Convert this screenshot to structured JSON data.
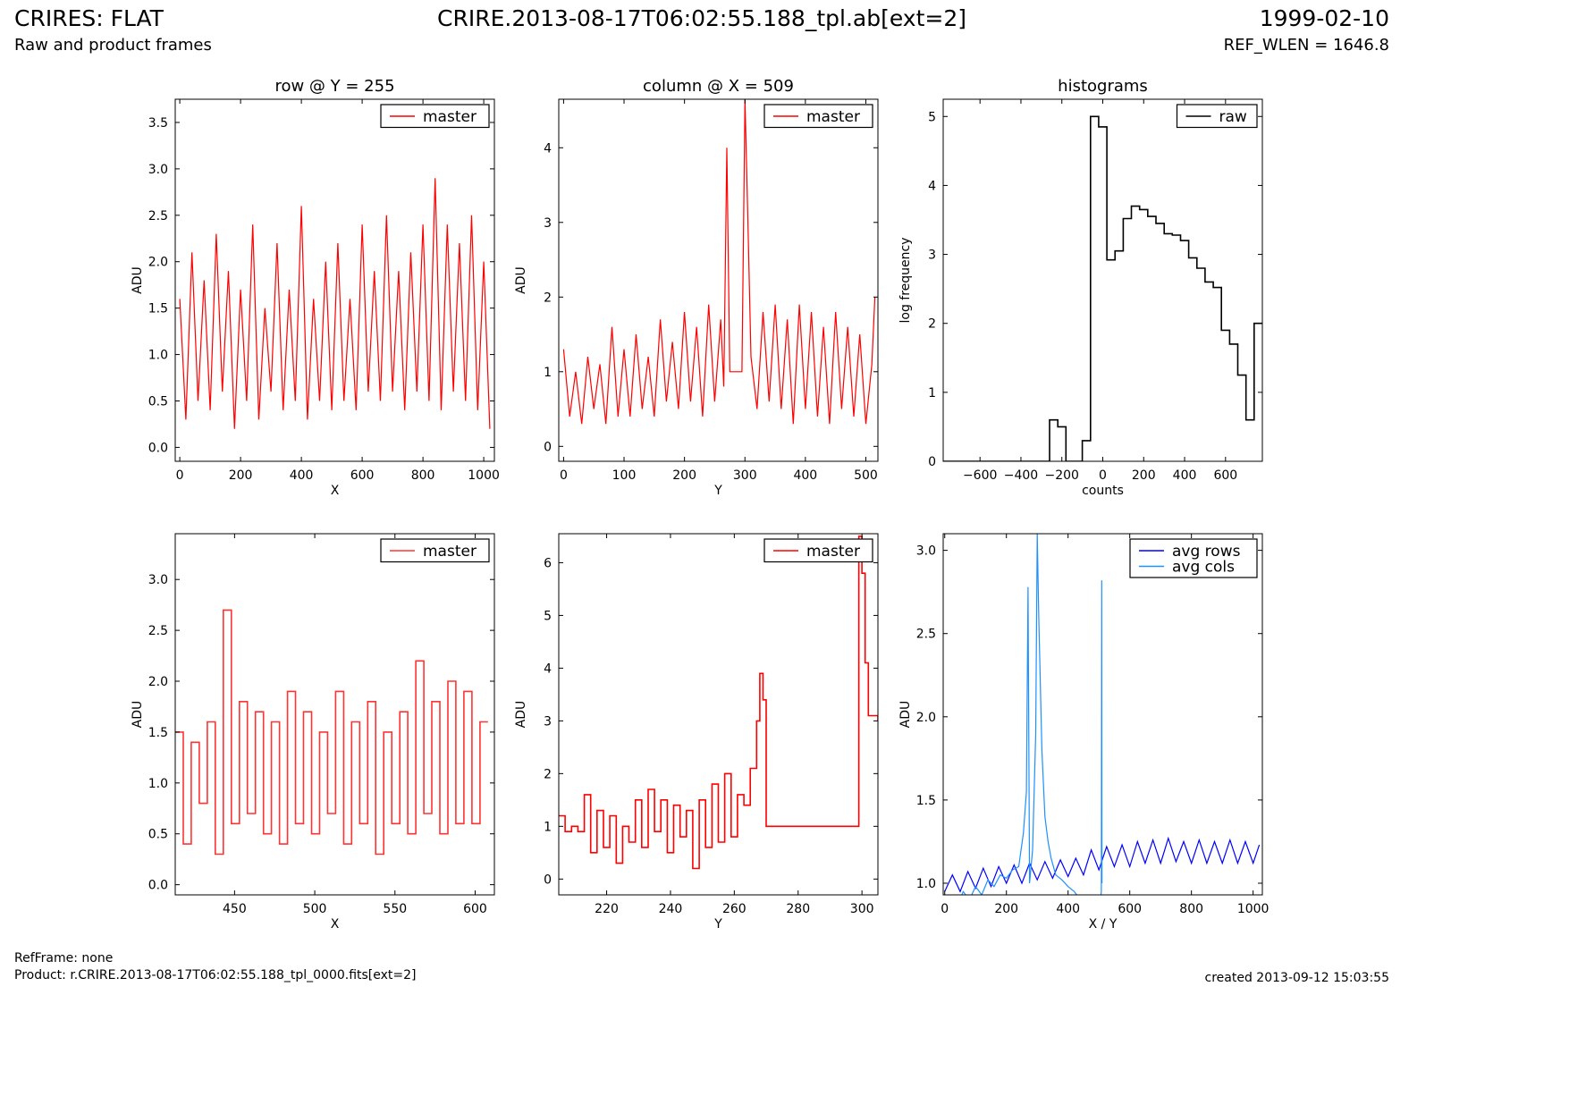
{
  "header": {
    "title_left": "CRIRES: FLAT",
    "subtitle_left": "Raw and product frames",
    "title_center": "CRIRE.2013-08-17T06:02:55.188_tpl.ab[ext=2]",
    "title_right": "1999-02-10",
    "subtitle_right": "REF_WLEN = 1646.8"
  },
  "footer": {
    "refframe": "RefFrame: none",
    "product": "Product: r.CRIRE.2013-08-17T06:02:55.188_tpl_0000.fits[ext=2]",
    "created": "created 2013-09-12 15:03:55"
  },
  "chart_data": [
    {
      "type": "line",
      "title": "row @ Y = 255",
      "xlabel": "X",
      "ylabel": "ADU",
      "xlim": [
        -15,
        1035
      ],
      "ylim": [
        -0.15,
        3.75
      ],
      "xticks": [
        0,
        200,
        400,
        600,
        800,
        1000
      ],
      "yticks": [
        0.0,
        0.5,
        1.0,
        1.5,
        2.0,
        2.5,
        3.0,
        3.5
      ],
      "ytick_labels": [
        "0.0",
        "0.5",
        "1.0",
        "1.5",
        "2.0",
        "2.5",
        "3.0",
        "3.5"
      ],
      "legend": "top-right",
      "series": [
        {
          "name": "master",
          "color": "#ff0000",
          "step": false,
          "x": [
            0,
            20,
            40,
            60,
            80,
            100,
            120,
            140,
            160,
            180,
            200,
            220,
            240,
            260,
            280,
            300,
            320,
            340,
            360,
            380,
            400,
            420,
            440,
            460,
            480,
            500,
            520,
            540,
            560,
            580,
            600,
            620,
            640,
            660,
            680,
            700,
            720,
            740,
            760,
            780,
            800,
            820,
            840,
            860,
            880,
            900,
            920,
            940,
            960,
            980,
            1000,
            1020
          ],
          "y": [
            1.6,
            0.3,
            2.1,
            0.5,
            1.8,
            0.4,
            2.3,
            0.6,
            1.9,
            0.2,
            1.7,
            0.5,
            2.4,
            0.3,
            1.5,
            0.6,
            2.2,
            0.4,
            1.7,
            0.5,
            2.6,
            0.3,
            1.6,
            0.5,
            2.0,
            0.4,
            2.2,
            0.5,
            1.6,
            0.4,
            2.4,
            0.6,
            1.9,
            0.5,
            2.5,
            0.6,
            1.9,
            0.4,
            2.1,
            0.6,
            2.4,
            0.5,
            2.9,
            0.4,
            2.4,
            0.6,
            2.2,
            0.5,
            2.5,
            0.4,
            2.0,
            0.2
          ]
        }
      ]
    },
    {
      "type": "line",
      "title": "column @ X = 509",
      "xlabel": "Y",
      "ylabel": "ADU",
      "xlim": [
        -8,
        520
      ],
      "ylim": [
        -0.2,
        4.65
      ],
      "xticks": [
        0,
        100,
        200,
        300,
        400,
        500
      ],
      "yticks": [
        0,
        1,
        2,
        3,
        4
      ],
      "ytick_labels": [
        "0",
        "1",
        "2",
        "3",
        "4"
      ],
      "legend": "top-right",
      "series": [
        {
          "name": "master",
          "color": "#ff0000",
          "step": false,
          "x": [
            0,
            10,
            20,
            30,
            40,
            50,
            60,
            70,
            80,
            90,
            100,
            110,
            120,
            130,
            140,
            150,
            160,
            170,
            180,
            190,
            200,
            210,
            220,
            230,
            240,
            250,
            260,
            265,
            270,
            275,
            280,
            290,
            295,
            300,
            305,
            310,
            320,
            330,
            340,
            350,
            360,
            370,
            380,
            390,
            400,
            410,
            420,
            430,
            440,
            450,
            460,
            470,
            480,
            490,
            500,
            510,
            515
          ],
          "y": [
            1.3,
            0.4,
            1.0,
            0.3,
            1.2,
            0.5,
            1.1,
            0.3,
            1.6,
            0.4,
            1.3,
            0.4,
            1.5,
            0.5,
            1.2,
            0.4,
            1.7,
            0.6,
            1.4,
            0.5,
            1.8,
            0.6,
            1.6,
            0.4,
            1.9,
            0.6,
            1.7,
            0.8,
            4.0,
            1.0,
            1.0,
            1.0,
            1.0,
            4.65,
            3.0,
            1.2,
            0.5,
            1.8,
            0.6,
            1.9,
            0.5,
            1.7,
            0.3,
            1.9,
            0.5,
            1.8,
            0.4,
            1.6,
            0.3,
            1.8,
            0.5,
            1.6,
            0.4,
            1.5,
            0.3,
            1.1,
            2.0
          ]
        }
      ]
    },
    {
      "type": "line",
      "title": "histograms",
      "xlabel": "counts",
      "ylabel": "log frequency",
      "xlim": [
        -780,
        780
      ],
      "ylim": [
        0,
        5.25
      ],
      "xticks": [
        -600,
        -400,
        -200,
        0,
        200,
        400,
        600
      ],
      "yticks": [
        0,
        1,
        2,
        3,
        4,
        5
      ],
      "ytick_labels": [
        "0",
        "1",
        "2",
        "3",
        "4",
        "5"
      ],
      "legend": "top-right",
      "series": [
        {
          "name": "raw",
          "color": "#000000",
          "step": true,
          "x": [
            -780,
            -260,
            -220,
            -180,
            -140,
            -100,
            -60,
            -20,
            20,
            60,
            100,
            140,
            180,
            220,
            260,
            300,
            340,
            380,
            420,
            460,
            500,
            540,
            580,
            620,
            660,
            700,
            740,
            780
          ],
          "y": [
            0,
            0.6,
            0.5,
            0,
            0,
            0.3,
            5.0,
            4.85,
            2.92,
            3.05,
            3.52,
            3.7,
            3.65,
            3.55,
            3.45,
            3.3,
            3.28,
            3.2,
            2.95,
            2.8,
            2.6,
            2.52,
            1.9,
            1.7,
            1.25,
            0.6,
            2.0,
            2.0
          ]
        }
      ]
    },
    {
      "type": "line",
      "title": "",
      "xlabel": "X",
      "ylabel": "ADU",
      "xlim": [
        413,
        612
      ],
      "ylim": [
        -0.1,
        3.45
      ],
      "xticks": [
        450,
        500,
        550,
        600
      ],
      "yticks": [
        0.0,
        0.5,
        1.0,
        1.5,
        2.0,
        2.5,
        3.0
      ],
      "ytick_labels": [
        "0.0",
        "0.5",
        "1.0",
        "1.5",
        "2.0",
        "2.5",
        "3.0"
      ],
      "legend": "top-right",
      "series": [
        {
          "name": "master",
          "color": "#ff3333",
          "step": true,
          "x": [
            413,
            418,
            423,
            428,
            433,
            438,
            443,
            448,
            453,
            458,
            463,
            468,
            473,
            478,
            483,
            488,
            493,
            498,
            503,
            508,
            513,
            518,
            523,
            528,
            533,
            538,
            543,
            548,
            553,
            558,
            563,
            568,
            573,
            578,
            583,
            588,
            593,
            598,
            603,
            608
          ],
          "y": [
            1.5,
            0.4,
            1.4,
            0.8,
            1.6,
            0.3,
            2.7,
            0.6,
            1.8,
            0.7,
            1.7,
            0.5,
            1.6,
            0.4,
            1.9,
            0.6,
            1.7,
            0.5,
            1.5,
            0.7,
            1.9,
            0.4,
            1.6,
            0.6,
            1.8,
            0.3,
            1.5,
            0.6,
            1.7,
            0.5,
            2.2,
            0.7,
            1.8,
            0.5,
            2.0,
            0.6,
            1.9,
            0.6,
            1.6,
            1.6
          ]
        }
      ]
    },
    {
      "type": "line",
      "title": "",
      "xlabel": "Y",
      "ylabel": "ADU",
      "xlim": [
        205,
        305
      ],
      "ylim": [
        -0.3,
        6.55
      ],
      "xticks": [
        220,
        240,
        260,
        280,
        300
      ],
      "yticks": [
        0,
        1,
        2,
        3,
        4,
        5,
        6
      ],
      "ytick_labels": [
        "0",
        "1",
        "2",
        "3",
        "4",
        "5",
        "6"
      ],
      "legend": "top-right",
      "series": [
        {
          "name": "master",
          "color": "#ff0000",
          "step": true,
          "x": [
            205,
            207,
            209,
            211,
            213,
            215,
            217,
            219,
            221,
            223,
            225,
            227,
            229,
            231,
            233,
            235,
            237,
            239,
            241,
            243,
            245,
            247,
            249,
            251,
            253,
            255,
            257,
            259,
            261,
            263,
            265,
            267,
            268,
            269,
            270,
            280,
            290,
            298,
            299,
            300,
            301,
            302,
            303,
            305
          ],
          "y": [
            1.2,
            0.9,
            1.0,
            0.9,
            1.6,
            0.5,
            1.3,
            0.6,
            1.2,
            0.3,
            1.0,
            0.7,
            1.5,
            0.6,
            1.7,
            0.9,
            1.5,
            0.5,
            1.4,
            0.8,
            1.3,
            0.2,
            1.5,
            0.6,
            1.8,
            0.7,
            2.0,
            0.8,
            1.6,
            1.4,
            2.1,
            3.0,
            3.9,
            3.4,
            1.0,
            1.0,
            1.0,
            1.0,
            6.5,
            5.8,
            4.1,
            3.1,
            3.1,
            3.0
          ]
        }
      ]
    },
    {
      "type": "line",
      "title": "",
      "xlabel": "X / Y",
      "ylabel": "ADU",
      "xlim": [
        -5,
        1030
      ],
      "ylim": [
        0.93,
        3.1
      ],
      "xticks": [
        0,
        200,
        400,
        600,
        800,
        1000
      ],
      "yticks": [
        1.0,
        1.5,
        2.0,
        2.5,
        3.0
      ],
      "ytick_labels": [
        "1.0",
        "1.5",
        "2.0",
        "2.5",
        "3.0"
      ],
      "legend": "top-right",
      "series": [
        {
          "name": "avg rows",
          "color": "#0000ff",
          "step": false,
          "x": [
            0,
            25,
            50,
            75,
            100,
            125,
            150,
            175,
            200,
            225,
            250,
            275,
            300,
            325,
            350,
            375,
            400,
            425,
            450,
            475,
            500,
            525,
            550,
            575,
            600,
            625,
            650,
            675,
            700,
            725,
            750,
            775,
            800,
            825,
            850,
            875,
            900,
            925,
            950,
            975,
            1000,
            1020
          ],
          "y": [
            0.95,
            1.05,
            0.95,
            1.07,
            0.97,
            1.09,
            0.98,
            1.1,
            1.0,
            1.11,
            1.0,
            1.12,
            1.02,
            1.13,
            1.03,
            1.14,
            1.04,
            1.15,
            1.05,
            1.2,
            1.08,
            1.22,
            1.1,
            1.23,
            1.1,
            1.25,
            1.12,
            1.26,
            1.12,
            1.27,
            1.13,
            1.25,
            1.12,
            1.26,
            1.12,
            1.25,
            1.12,
            1.26,
            1.12,
            1.25,
            1.12,
            1.23
          ]
        },
        {
          "name": "avg cols",
          "color": "#1e90ff",
          "step": false,
          "x": [
            0,
            20,
            40,
            60,
            80,
            100,
            120,
            140,
            160,
            180,
            200,
            220,
            240,
            255,
            265,
            270,
            275,
            285,
            295,
            300,
            305,
            315,
            325,
            335,
            345,
            360,
            380,
            400,
            420,
            440,
            460,
            480,
            500,
            508,
            509,
            510
          ],
          "y": [
            0.85,
            0.92,
            0.86,
            0.95,
            0.9,
            0.98,
            0.93,
            1.02,
            0.98,
            1.05,
            1.03,
            1.08,
            1.1,
            1.3,
            1.55,
            2.78,
            1.0,
            1.2,
            1.9,
            3.1,
            2.6,
            1.8,
            1.4,
            1.25,
            1.15,
            1.05,
            1.02,
            0.98,
            0.95,
            0.9,
            0.88,
            0.85,
            0.82,
            0.95,
            2.82,
            1.0
          ]
        }
      ]
    }
  ]
}
